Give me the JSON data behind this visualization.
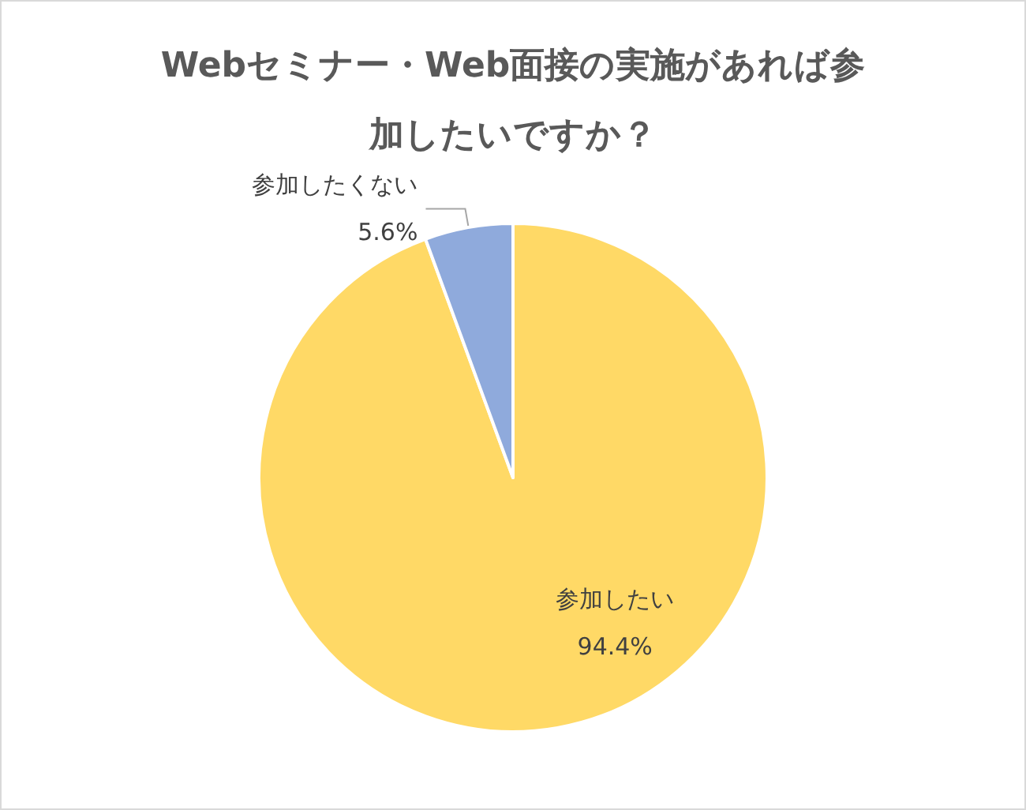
{
  "chart_data": {
    "type": "pie",
    "title": "Webセミナー・Web面接の実施があれば参加したいですか？",
    "categories": [
      "参加したい",
      "参加したくない"
    ],
    "values": [
      94.4,
      5.6
    ],
    "colors": [
      "#ffd966",
      "#8faadc"
    ],
    "value_labels": [
      "94.4%",
      "5.6%"
    ],
    "legend": false
  }
}
